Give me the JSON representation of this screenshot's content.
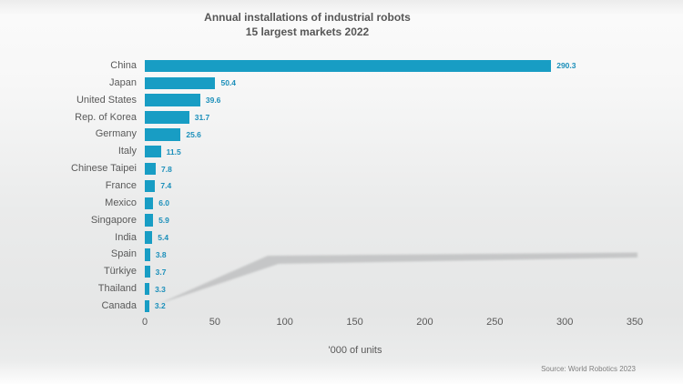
{
  "title": {
    "line1": "Annual installations of industrial robots",
    "line2": "15 largest markets 2022"
  },
  "source": "Source: World Robotics 2023",
  "chart_data": {
    "type": "bar",
    "orientation": "horizontal",
    "title": "Annual installations of industrial robots",
    "subtitle": "15 largest markets 2022",
    "categories": [
      "China",
      "Japan",
      "United States",
      "Rep. of Korea",
      "Germany",
      "Italy",
      "Chinese Taipei",
      "France",
      "Mexico",
      "Singapore",
      "India",
      "Spain",
      "Türkiye",
      "Thailand",
      "Canada"
    ],
    "values": [
      290.3,
      50.4,
      39.6,
      31.7,
      25.6,
      11.5,
      7.8,
      7.4,
      6.0,
      5.9,
      5.4,
      3.8,
      3.7,
      3.3,
      3.2
    ],
    "value_labels": [
      "290.3",
      "50.4",
      "39.6",
      "31.7",
      "25.6",
      "11.5",
      "7.8",
      "7.4",
      "6.0",
      "5.9",
      "5.4",
      "3.8",
      "3.7",
      "3.3",
      "3.2"
    ],
    "xlabel": "'000 of units",
    "xticks": [
      0,
      50,
      100,
      150,
      200,
      250,
      300,
      350
    ],
    "xlim": [
      0,
      350
    ],
    "grid": false,
    "legend": false,
    "bar_color": "#189dc4",
    "value_color": "#1b8fba",
    "label_color": "#595959",
    "title_color": "#565656"
  }
}
